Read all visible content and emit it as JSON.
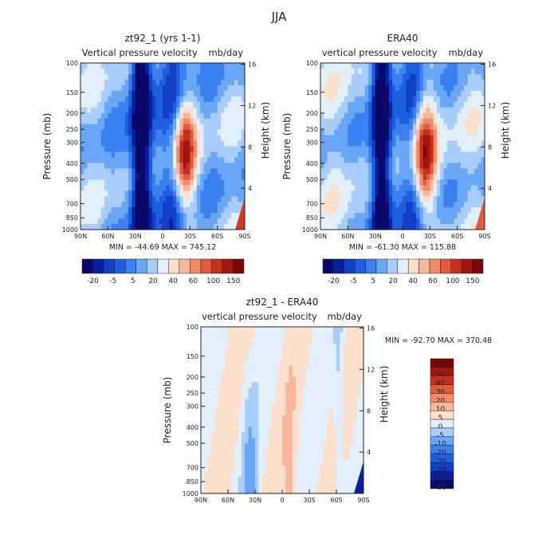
{
  "page_title": "JJA",
  "colors": {
    "model_scale": [
      "#08096a",
      "#0a1fa0",
      "#1240c8",
      "#1e5fe0",
      "#3a80f0",
      "#69a6f6",
      "#a8cdfa",
      "#e2f0fe",
      "#fde0cc",
      "#f8b69a",
      "#f08a68",
      "#e25a3d",
      "#c62e1e",
      "#a3160f",
      "#7a0505"
    ],
    "diff_scale": [
      "#7a0505",
      "#a3160f",
      "#c62e1e",
      "#e25a3d",
      "#f08a68",
      "#f8b69a",
      "#fde0cc",
      "#e2f0fe",
      "#a8cdfa",
      "#69a6f6",
      "#3a80f0",
      "#1e5fe0",
      "#1240c8",
      "#0a1fa0",
      "#08096a"
    ]
  },
  "chart_data": [
    {
      "type": "heatmap",
      "title": "zt92_1 (yrs 1-1)",
      "subtitle_left": "Vertical pressure velocity",
      "subtitle_right": "mb/day",
      "ylabel": "Pressure (mb)",
      "ylabel_right": "Height (km)",
      "x_ticks": [
        "90N",
        "60N",
        "30N",
        "0",
        "30S",
        "60S",
        "90S"
      ],
      "y_ticks": [
        "100",
        "150",
        "200",
        "250",
        "300",
        "400",
        "500",
        "700",
        "850",
        "1000"
      ],
      "y_ticks_right": [
        "16",
        "12",
        "8",
        "4"
      ],
      "min_max": "MIN = -44.69   MAX = 745.12",
      "colorbar_labels": [
        "-20",
        "-5",
        "5",
        "20",
        "40",
        "60",
        "100",
        "150"
      ]
    },
    {
      "type": "heatmap",
      "title": "ERA40",
      "subtitle_left": "vertical pressure velocity",
      "subtitle_right": "mb/day",
      "ylabel": "Pressure (mb)",
      "ylabel_right": "Height (km)",
      "x_ticks": [
        "90N",
        "60N",
        "30N",
        "0",
        "30S",
        "60S",
        "90S"
      ],
      "y_ticks": [
        "100",
        "150",
        "200",
        "250",
        "300",
        "400",
        "500",
        "700",
        "850",
        "1000"
      ],
      "y_ticks_right": [
        "16",
        "12",
        "8",
        "4"
      ],
      "min_max": "MIN = -61.30   MAX = 115.88",
      "colorbar_labels": [
        "-20",
        "-5",
        "5",
        "20",
        "40",
        "60",
        "100",
        "150"
      ]
    },
    {
      "type": "heatmap",
      "title": "zt92_1 - ERA40",
      "subtitle_left": "vertical pressure velocity",
      "subtitle_right": "mb/day",
      "ylabel": "Pressure (mb)",
      "ylabel_right": "Height (km)",
      "x_ticks": [
        "90N",
        "60N",
        "30N",
        "0",
        "30S",
        "60S",
        "90S"
      ],
      "y_ticks": [
        "100",
        "150",
        "200",
        "250",
        "300",
        "400",
        "500",
        "700",
        "850",
        "1000"
      ],
      "y_ticks_right": [
        "16",
        "12",
        "8",
        "4"
      ],
      "min_max": "MIN = -92.70   MAX = 370.48",
      "colorbar_labels": [
        "60",
        "50",
        "40",
        "30",
        "20",
        "10",
        "5",
        "0",
        "-5",
        "-10",
        "-20",
        "-30",
        "-40",
        "-50",
        "-60"
      ]
    }
  ]
}
